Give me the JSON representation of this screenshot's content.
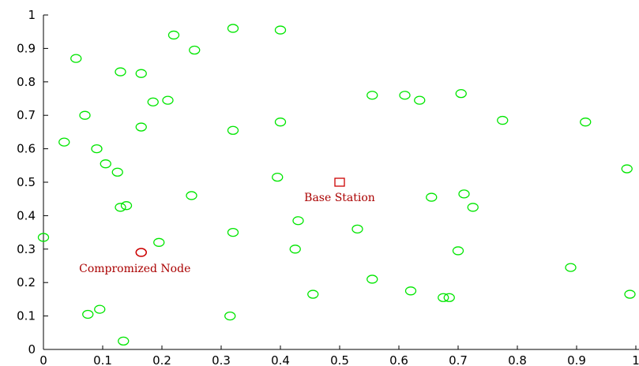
{
  "chart_data": {
    "type": "scatter",
    "title": "",
    "xlabel": "",
    "ylabel": "",
    "xlim": [
      0,
      1
    ],
    "ylim": [
      0,
      1
    ],
    "x_ticks": [
      "0",
      "0.1",
      "0.2",
      "0.3",
      "0.4",
      "0.5",
      "0.6",
      "0.7",
      "0.8",
      "0.9",
      "1"
    ],
    "y_ticks": [
      "0",
      "0.1",
      "0.2",
      "0.3",
      "0.4",
      "0.5",
      "0.6",
      "0.7",
      "0.8",
      "0.9",
      "1"
    ],
    "grid": false,
    "series": [
      {
        "marker": "circle",
        "color": "#00e600",
        "points": [
          [
            0.22,
            0.94
          ],
          [
            0.32,
            0.96
          ],
          [
            0.4,
            0.955
          ],
          [
            0.255,
            0.895
          ],
          [
            0.055,
            0.87
          ],
          [
            0.13,
            0.83
          ],
          [
            0.165,
            0.825
          ],
          [
            0.185,
            0.74
          ],
          [
            0.21,
            0.745
          ],
          [
            0.07,
            0.7
          ],
          [
            0.165,
            0.665
          ],
          [
            0.32,
            0.655
          ],
          [
            0.4,
            0.68
          ],
          [
            0.035,
            0.62
          ],
          [
            0.09,
            0.6
          ],
          [
            0.105,
            0.555
          ],
          [
            0.125,
            0.53
          ],
          [
            0.25,
            0.46
          ],
          [
            0.13,
            0.425
          ],
          [
            0.14,
            0.43
          ],
          [
            0.395,
            0.515
          ],
          [
            0.43,
            0.385
          ],
          [
            0.0,
            0.335
          ],
          [
            0.32,
            0.35
          ],
          [
            0.195,
            0.32
          ],
          [
            0.425,
            0.3
          ],
          [
            0.53,
            0.36
          ],
          [
            0.555,
            0.76
          ],
          [
            0.61,
            0.76
          ],
          [
            0.635,
            0.745
          ],
          [
            0.705,
            0.765
          ],
          [
            0.775,
            0.685
          ],
          [
            0.915,
            0.68
          ],
          [
            0.985,
            0.54
          ],
          [
            0.655,
            0.455
          ],
          [
            0.71,
            0.465
          ],
          [
            0.725,
            0.425
          ],
          [
            0.7,
            0.295
          ],
          [
            0.555,
            0.21
          ],
          [
            0.62,
            0.175
          ],
          [
            0.675,
            0.155
          ],
          [
            0.685,
            0.155
          ],
          [
            0.455,
            0.165
          ],
          [
            0.89,
            0.245
          ],
          [
            0.99,
            0.165
          ],
          [
            0.075,
            0.105
          ],
          [
            0.095,
            0.12
          ],
          [
            0.315,
            0.1
          ],
          [
            0.135,
            0.025
          ]
        ]
      }
    ],
    "special_points": [
      {
        "label": "Base Station",
        "marker": "square",
        "color": "#cc0000",
        "x": 0.5,
        "y": 0.5
      },
      {
        "label": "Compromized Node",
        "marker": "circle",
        "color": "#cc0000",
        "x": 0.165,
        "y": 0.29
      }
    ],
    "annotation_color": "#aa0000"
  }
}
